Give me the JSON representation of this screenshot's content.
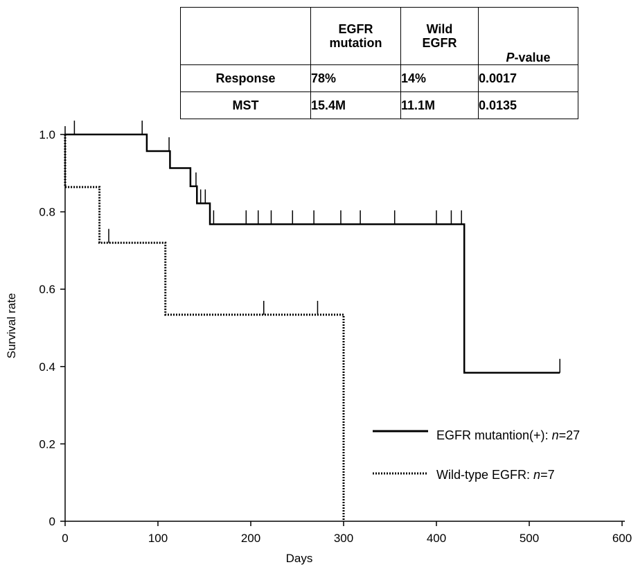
{
  "table": {
    "header": {
      "corner": "",
      "col1_line1": "EGFR",
      "col1_line2": "mutation",
      "col2_line1": "Wild",
      "col2_line2": "EGFR",
      "col3_italic": "P",
      "col3_rest": "-value"
    },
    "rows": [
      {
        "label": "Response",
        "egfr_mutation": "78%",
        "wild_egfr": "14%",
        "p_value": "0.0017"
      },
      {
        "label": "MST",
        "egfr_mutation": "15.4M",
        "wild_egfr": "11.1M",
        "p_value": "0.0135"
      }
    ]
  },
  "chart_data": {
    "type": "line",
    "xlabel": "Days",
    "ylabel": "Survival rate",
    "xlim": [
      0,
      600
    ],
    "ylim": [
      0,
      1.0
    ],
    "x_ticks": [
      0,
      100,
      200,
      300,
      400,
      500,
      600
    ],
    "y_ticks": [
      0,
      0.2,
      0.4,
      0.6,
      0.8,
      1.0
    ],
    "y_tick_labels": [
      "0",
      "0.2",
      "0.4",
      "0.6",
      "0.8",
      "1.0"
    ],
    "legend_position": "bottom-right",
    "series": [
      {
        "name": "EGFR mutantion(+)",
        "n_label": "n",
        "n_value": "=27",
        "style": "solid",
        "color": "#000000",
        "steps": [
          [
            0,
            1.0
          ],
          [
            88,
            0.957
          ],
          [
            113,
            0.913
          ],
          [
            135,
            0.866
          ],
          [
            142,
            0.822
          ],
          [
            156,
            0.768
          ],
          [
            430,
            0.384
          ],
          [
            533,
            0.384
          ]
        ],
        "censored": [
          [
            10,
            1.0
          ],
          [
            83,
            1.0
          ],
          [
            112,
            0.957
          ],
          [
            141,
            0.866
          ],
          [
            146,
            0.822
          ],
          [
            151,
            0.822
          ],
          [
            160,
            0.768
          ],
          [
            195,
            0.768
          ],
          [
            208,
            0.768
          ],
          [
            222,
            0.768
          ],
          [
            245,
            0.768
          ],
          [
            268,
            0.768
          ],
          [
            297,
            0.768
          ],
          [
            318,
            0.768
          ],
          [
            355,
            0.768
          ],
          [
            400,
            0.768
          ],
          [
            416,
            0.768
          ],
          [
            427,
            0.768
          ],
          [
            533,
            0.384
          ]
        ]
      },
      {
        "name": "Wild-type EGFR",
        "n_label": "n",
        "n_value": "=7",
        "style": "dotted",
        "color": "#000000",
        "steps": [
          [
            0,
            1.0
          ],
          [
            0,
            0.864
          ],
          [
            37,
            0.72
          ],
          [
            108,
            0.534
          ],
          [
            300,
            0.0
          ]
        ],
        "censored": [
          [
            47,
            0.72
          ],
          [
            214,
            0.534
          ],
          [
            272,
            0.534
          ]
        ]
      }
    ]
  }
}
